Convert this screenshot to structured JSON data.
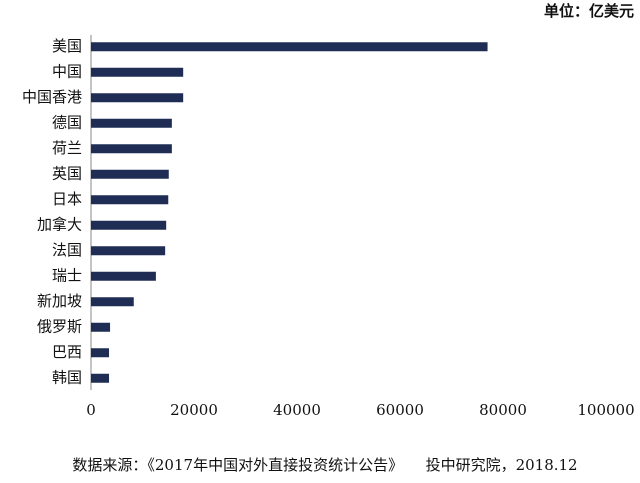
{
  "chart_data": {
    "type": "barh",
    "unit_label": "单位：亿美元",
    "categories": [
      "美国",
      "中国",
      "中国香港",
      "德国",
      "荷兰",
      "英国",
      "日本",
      "加拿大",
      "法国",
      "瑞士",
      "新加坡",
      "俄罗斯",
      "巴西",
      "韩国"
    ],
    "values": [
      77000,
      17900,
      17900,
      15700,
      15700,
      15100,
      15000,
      14600,
      14400,
      12600,
      8300,
      3700,
      3500,
      3500
    ],
    "color": "#1f2d55",
    "xlim": [
      0,
      100000
    ],
    "xticks": [
      0,
      20000,
      40000,
      60000,
      80000,
      100000
    ],
    "grid": false,
    "source": "数据来源：《2017年中国对外直接投资统计公告》　　投中研究院，2018.12"
  }
}
